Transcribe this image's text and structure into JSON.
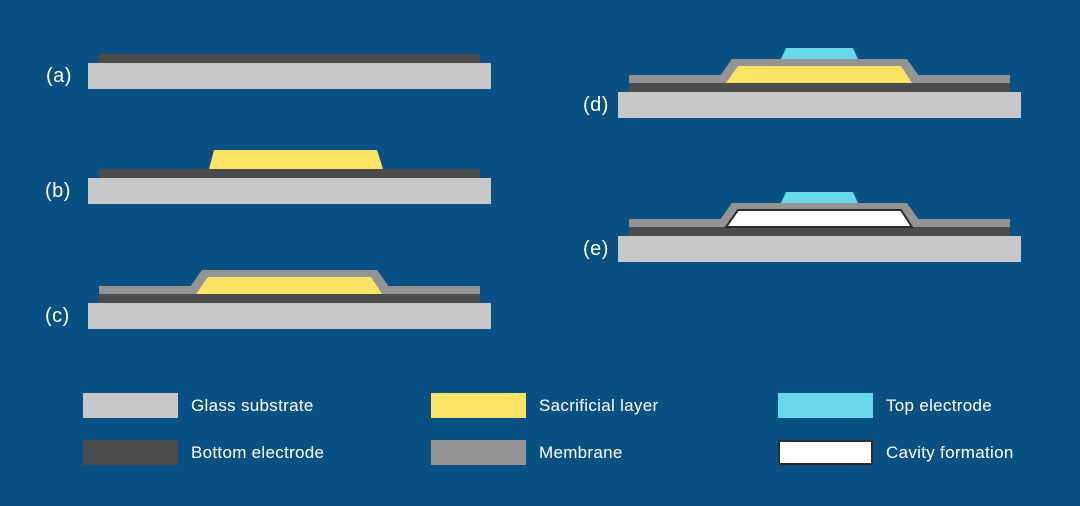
{
  "figure": {
    "kind": "microfabrication-process-steps",
    "step_count": 5
  },
  "panels": [
    {
      "id": "a",
      "label": "(a)",
      "layers": [
        "glass_substrate",
        "bottom_electrode"
      ]
    },
    {
      "id": "b",
      "label": "(b)",
      "layers": [
        "glass_substrate",
        "bottom_electrode",
        "sacrificial_layer"
      ]
    },
    {
      "id": "c",
      "label": "(c)",
      "layers": [
        "glass_substrate",
        "bottom_electrode",
        "sacrificial_layer",
        "membrane"
      ]
    },
    {
      "id": "d",
      "label": "(d)",
      "layers": [
        "glass_substrate",
        "bottom_electrode",
        "sacrificial_layer",
        "membrane",
        "top_electrode"
      ]
    },
    {
      "id": "e",
      "label": "(e)",
      "layers": [
        "glass_substrate",
        "bottom_electrode",
        "membrane",
        "cavity",
        "top_electrode"
      ]
    }
  ],
  "legend": {
    "items": [
      {
        "label": "Glass substrate",
        "color": "#C8C8C9"
      },
      {
        "label": "Bottom electrode",
        "color": "#4B4B4B"
      },
      {
        "label": "Sacrificial layer",
        "color": "#FCE363"
      },
      {
        "label": "Membrane",
        "color": "#949494"
      },
      {
        "label": "Top electrode",
        "color": "#67D8EA"
      },
      {
        "label": "Cavity formation",
        "color": "#FFFFFF",
        "border": "#2B2B2B"
      }
    ]
  },
  "colors": {
    "background": "#0A5183",
    "glass_substrate": "#C8C8C9",
    "bottom_electrode": "#4B4B4B",
    "sacrificial_layer": "#FCE363",
    "membrane": "#949494",
    "top_electrode": "#67D8EA",
    "cavity_fill": "#FFFFFF",
    "cavity_border": "#2B2B2B",
    "label_text": "#FFFFFF"
  }
}
